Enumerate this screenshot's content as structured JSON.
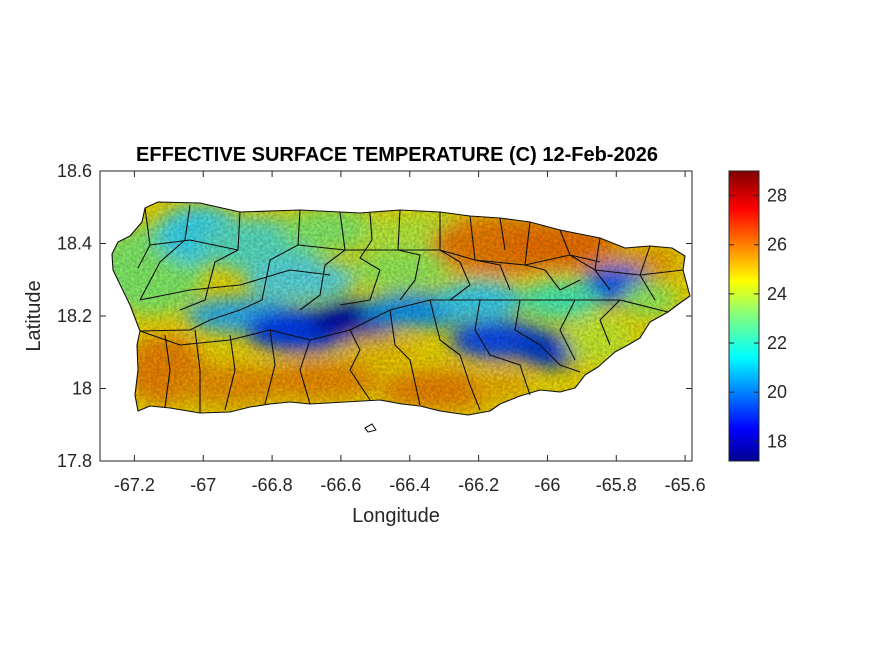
{
  "figure": {
    "title": "EFFECTIVE SURFACE TEMPERATURE (C) 12-Feb-2026",
    "xlabel": "Longitude",
    "ylabel": "Latitude"
  },
  "chart_data": {
    "type": "heatmap",
    "title": "EFFECTIVE SURFACE TEMPERATURE (C) 12-Feb-2026",
    "xlabel": "Longitude",
    "ylabel": "Latitude",
    "xlim": [
      -67.3,
      -65.58
    ],
    "ylim": [
      17.8,
      18.6
    ],
    "xticks": [
      -67.2,
      -67,
      -66.8,
      -66.6,
      -66.4,
      -66.2,
      -66,
      -65.8,
      -65.6
    ],
    "xtick_labels": [
      "-67.2",
      "-67",
      "-66.8",
      "-66.6",
      "-66.4",
      "-66.2",
      "-66",
      "-65.8",
      "-65.6"
    ],
    "yticks": [
      17.8,
      18,
      18.2,
      18.4,
      18.6
    ],
    "ytick_labels": [
      "17.8",
      "18",
      "18.2",
      "18.4",
      "18.6"
    ],
    "colorbar": {
      "colormap": "jet",
      "range": [
        17.2,
        29
      ],
      "ticks": [
        18,
        20,
        22,
        24,
        26,
        28
      ],
      "tick_labels": [
        "18",
        "20",
        "22",
        "24",
        "26",
        "28"
      ]
    },
    "region": "Puerto Rico",
    "approx_fields": [
      {
        "lon": -67.15,
        "lat": 18.38,
        "temp": 22.8
      },
      {
        "lon": -66.95,
        "lat": 18.42,
        "temp": 21.5
      },
      {
        "lon": -66.75,
        "lat": 18.45,
        "temp": 22.5
      },
      {
        "lon": -66.55,
        "lat": 18.45,
        "temp": 23.5
      },
      {
        "lon": -66.35,
        "lat": 18.44,
        "temp": 23.8
      },
      {
        "lon": -66.15,
        "lat": 18.42,
        "temp": 26.2
      },
      {
        "lon": -66.0,
        "lat": 18.4,
        "temp": 26.0
      },
      {
        "lon": -65.82,
        "lat": 18.3,
        "temp": 20.5
      },
      {
        "lon": -65.7,
        "lat": 18.24,
        "temp": 23.5
      },
      {
        "lon": -66.7,
        "lat": 18.2,
        "temp": 19.5
      },
      {
        "lon": -66.55,
        "lat": 18.17,
        "temp": 18.5
      },
      {
        "lon": -66.3,
        "lat": 18.2,
        "temp": 21.0
      },
      {
        "lon": -66.05,
        "lat": 18.12,
        "temp": 19.8
      },
      {
        "lon": -67.15,
        "lat": 18.08,
        "temp": 25.5
      },
      {
        "lon": -66.9,
        "lat": 18.0,
        "temp": 25.0
      },
      {
        "lon": -66.5,
        "lat": 18.0,
        "temp": 25.2
      },
      {
        "lon": -66.2,
        "lat": 17.98,
        "temp": 25.5
      },
      {
        "lon": -65.9,
        "lat": 18.05,
        "temp": 24.0
      }
    ]
  }
}
